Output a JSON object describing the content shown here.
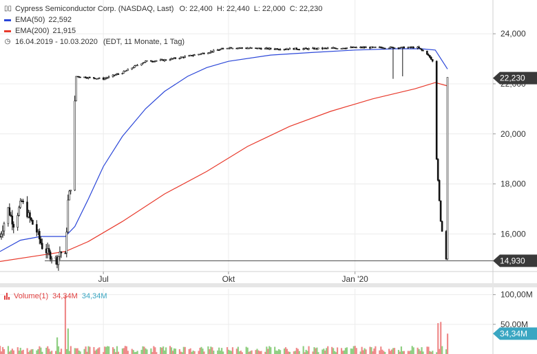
{
  "header": {
    "title": "Cypress Semiconductor Corp. (NASDAQ, Last)",
    "ohlc": "O: 22,400  H: 22,440  L: 22,000  C: 22,230",
    "ema50_label": "EMA(50)",
    "ema50_value": "22,592",
    "ema200_label": "EMA(200)",
    "ema200_value": "21,915",
    "range": "16.04.2019 - 10.03.2020",
    "range_note": "(EDT, 11 Monate, 1 Tag)"
  },
  "volume_legend": {
    "label": "Volume(1)",
    "value_red": "34,34M",
    "value_blue": "34,34M"
  },
  "colors": {
    "ema50": "#2a46d8",
    "ema200": "#e8392b",
    "price_badge": "#3a3a3a",
    "vol_badge": "#3aa6c2",
    "vol_up": "#8fcf82",
    "vol_down": "#ef8a8a"
  },
  "chart_data": [
    {
      "type": "candlestick",
      "ylim": [
        14500,
        24800
      ],
      "y_ticks": [
        16000,
        18000,
        20000,
        22000,
        24000
      ],
      "y_tick_labels": [
        "16,000",
        "18,000",
        "20,000",
        "22,000",
        "24,000"
      ],
      "x_tick_labels": [
        "Jul",
        "Okt",
        "Jan '20"
      ],
      "x_tick_dates": [
        "2019-07-01",
        "2019-10-01",
        "2020-01-02"
      ],
      "last_price_label": "22,230",
      "last_price": 22230,
      "min_line_label": "14,930",
      "min_line": 14930,
      "grid": true,
      "price_path": [
        [
          "2019-04-16",
          15900
        ],
        [
          "2019-04-22",
          17000
        ],
        [
          "2019-04-26",
          16400
        ],
        [
          "2019-05-02",
          17300
        ],
        [
          "2019-05-08",
          16600
        ],
        [
          "2019-05-13",
          16100
        ],
        [
          "2019-05-17",
          15500
        ],
        [
          "2019-05-22",
          15200
        ],
        [
          "2019-05-28",
          14950
        ],
        [
          "2019-05-30",
          15300
        ],
        [
          "2019-06-03",
          15100
        ],
        [
          "2019-06-05",
          17300
        ],
        [
          "2019-06-07",
          17900
        ],
        [
          "2019-06-11",
          22300
        ],
        [
          "2019-06-20",
          22250
        ],
        [
          "2019-07-01",
          22200
        ],
        [
          "2019-07-15",
          22450
        ],
        [
          "2019-07-26",
          22750
        ],
        [
          "2019-08-01",
          22900
        ],
        [
          "2019-08-15",
          22950
        ],
        [
          "2019-09-01",
          23100
        ],
        [
          "2019-09-15",
          23250
        ],
        [
          "2019-10-01",
          23450
        ],
        [
          "2019-11-01",
          23400
        ],
        [
          "2019-12-01",
          23400
        ],
        [
          "2020-01-02",
          23450
        ],
        [
          "2020-02-01",
          23450
        ],
        [
          "2020-02-17",
          23450
        ],
        [
          "2020-02-24",
          23200
        ],
        [
          "2020-02-28",
          22900
        ],
        [
          "2020-03-02",
          19000
        ],
        [
          "2020-03-05",
          16500
        ],
        [
          "2020-03-09",
          15000
        ],
        [
          "2020-03-10",
          22230
        ]
      ],
      "series": [
        {
          "name": "EMA(50)",
          "values": [
            [
              "2019-04-16",
              15300
            ],
            [
              "2019-05-01",
              15750
            ],
            [
              "2019-05-16",
              15900
            ],
            [
              "2019-06-03",
              15900
            ],
            [
              "2019-06-10",
              16300
            ],
            [
              "2019-06-20",
              17400
            ],
            [
              "2019-07-01",
              18700
            ],
            [
              "2019-07-15",
              19900
            ],
            [
              "2019-08-01",
              21000
            ],
            [
              "2019-08-15",
              21700
            ],
            [
              "2019-09-01",
              22300
            ],
            [
              "2019-09-15",
              22650
            ],
            [
              "2019-10-01",
              22900
            ],
            [
              "2019-11-01",
              23150
            ],
            [
              "2019-12-01",
              23250
            ],
            [
              "2020-01-02",
              23350
            ],
            [
              "2020-02-01",
              23400
            ],
            [
              "2020-02-20",
              23400
            ],
            [
              "2020-03-01",
              23350
            ],
            [
              "2020-03-10",
              22592
            ]
          ]
        },
        {
          "name": "EMA(200)",
          "values": [
            [
              "2019-04-16",
              14900
            ],
            [
              "2019-05-16",
              15150
            ],
            [
              "2019-06-03",
              15300
            ],
            [
              "2019-06-20",
              15700
            ],
            [
              "2019-07-15",
              16500
            ],
            [
              "2019-08-15",
              17600
            ],
            [
              "2019-09-15",
              18500
            ],
            [
              "2019-10-15",
              19500
            ],
            [
              "2019-11-15",
              20300
            ],
            [
              "2019-12-15",
              20900
            ],
            [
              "2020-01-15",
              21400
            ],
            [
              "2020-02-15",
              21800
            ],
            [
              "2020-03-01",
              22050
            ],
            [
              "2020-03-10",
              21915
            ]
          ]
        }
      ]
    },
    {
      "type": "bar",
      "name": "Volume(1)",
      "ylim": [
        0,
        110
      ],
      "y_ticks": [
        50,
        100
      ],
      "y_tick_labels": [
        "50,00M",
        "100,00M"
      ],
      "last_value_label": "34,34M",
      "last_value": 34.34,
      "spikes": [
        [
          "2019-06-03",
          98
        ],
        [
          "2019-06-05",
          43
        ],
        [
          "2019-05-28",
          28
        ],
        [
          "2020-03-03",
          52
        ],
        [
          "2020-03-05",
          54
        ],
        [
          "2020-03-10",
          34.34
        ]
      ],
      "typical_range": [
        3,
        14
      ]
    }
  ]
}
